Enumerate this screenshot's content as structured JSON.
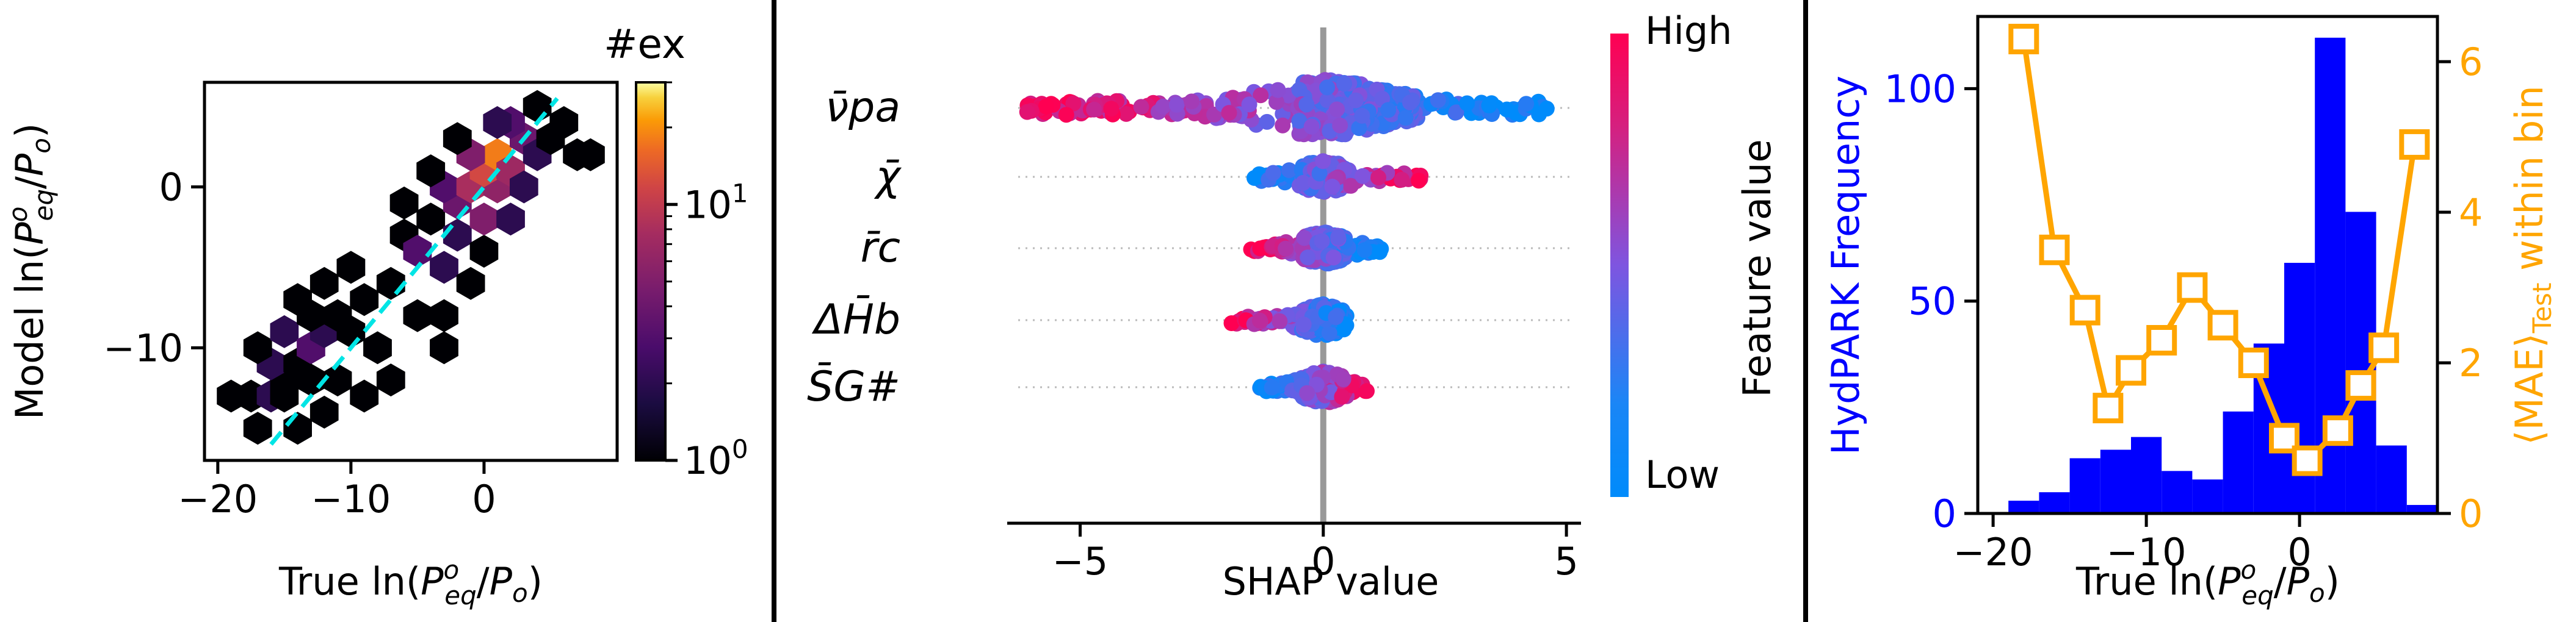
{
  "panels": [
    {
      "id": "hexbin",
      "chart_data": {
        "type": "heatmap",
        "subtype": "hexbin",
        "xlabel": "True ln(P°eq/Po)",
        "ylabel": "Model ln(P°eq/Po)",
        "xticks": [
          -20,
          -10,
          0
        ],
        "yticks": [
          0,
          -10
        ],
        "xlim": [
          -21,
          10
        ],
        "ylim": [
          -17,
          6.5
        ],
        "colorbar": {
          "label": "#ex",
          "scale": "log",
          "ticks": [
            "10^0",
            "10^1"
          ],
          "range": [
            1,
            30
          ],
          "colormap": "inferno"
        },
        "cells": [
          {
            "x": -19,
            "y": -13,
            "count": 1
          },
          {
            "x": -17.5,
            "y": -13,
            "count": 1
          },
          {
            "x": -16,
            "y": -13,
            "count": 2
          },
          {
            "x": -15,
            "y": -12,
            "count": 1
          },
          {
            "x": -16,
            "y": -11,
            "count": 2
          },
          {
            "x": -14,
            "y": -11,
            "count": 1
          },
          {
            "x": -17,
            "y": -10,
            "count": 1
          },
          {
            "x": -15,
            "y": -9,
            "count": 2
          },
          {
            "x": -13,
            "y": -10,
            "count": 3
          },
          {
            "x": -12,
            "y": -9,
            "count": 2
          },
          {
            "x": -13,
            "y": -8,
            "count": 1
          },
          {
            "x": -11,
            "y": -8,
            "count": 1
          },
          {
            "x": -10,
            "y": -9,
            "count": 1
          },
          {
            "x": -14,
            "y": -7,
            "count": 1
          },
          {
            "x": -12,
            "y": -6,
            "count": 1
          },
          {
            "x": -9,
            "y": -7,
            "count": 1
          },
          {
            "x": -7,
            "y": -6,
            "count": 1
          },
          {
            "x": -10,
            "y": -5,
            "count": 1
          },
          {
            "x": -15,
            "y": -13,
            "count": 1
          },
          {
            "x": -13,
            "y": -12,
            "count": 1
          },
          {
            "x": -11,
            "y": -12,
            "count": 1
          },
          {
            "x": -9,
            "y": -13,
            "count": 1
          },
          {
            "x": -12,
            "y": -14,
            "count": 1
          },
          {
            "x": -17,
            "y": -15,
            "count": 1
          },
          {
            "x": -14,
            "y": -15,
            "count": 1
          },
          {
            "x": -7,
            "y": -12,
            "count": 1
          },
          {
            "x": -5,
            "y": -8,
            "count": 1
          },
          {
            "x": -3,
            "y": -8,
            "count": 1
          },
          {
            "x": -6,
            "y": -3,
            "count": 1
          },
          {
            "x": -4,
            "y": -2,
            "count": 1
          },
          {
            "x": -5,
            "y": -4,
            "count": 3
          },
          {
            "x": -3,
            "y": -5,
            "count": 2
          },
          {
            "x": -2,
            "y": -3,
            "count": 2
          },
          {
            "x": -1,
            "y": -6,
            "count": 1
          },
          {
            "x": 0,
            "y": -4,
            "count": 1
          },
          {
            "x": -2,
            "y": -1,
            "count": 4
          },
          {
            "x": -3,
            "y": 0,
            "count": 3
          },
          {
            "x": -1,
            "y": 0,
            "count": 8
          },
          {
            "x": 1,
            "y": 0,
            "count": 6
          },
          {
            "x": 0,
            "y": -2,
            "count": 5
          },
          {
            "x": 2,
            "y": -2,
            "count": 2
          },
          {
            "x": 0,
            "y": 1,
            "count": 12
          },
          {
            "x": 1,
            "y": 2,
            "count": 18
          },
          {
            "x": 2,
            "y": 1,
            "count": 7
          },
          {
            "x": -1,
            "y": 2,
            "count": 5
          },
          {
            "x": 3,
            "y": 3,
            "count": 4
          },
          {
            "x": 2,
            "y": 4,
            "count": 3
          },
          {
            "x": 4,
            "y": 2,
            "count": 2
          },
          {
            "x": 1,
            "y": 4,
            "count": 2
          },
          {
            "x": 3,
            "y": 0,
            "count": 2
          },
          {
            "x": 5,
            "y": 3,
            "count": 1
          },
          {
            "x": 4,
            "y": 5,
            "count": 1
          },
          {
            "x": 6,
            "y": 4,
            "count": 1
          },
          {
            "x": 7,
            "y": 2,
            "count": 1
          },
          {
            "x": 8,
            "y": 2,
            "count": 1
          },
          {
            "x": -4,
            "y": 1,
            "count": 1
          },
          {
            "x": -6,
            "y": -1,
            "count": 1
          },
          {
            "x": -2,
            "y": 3,
            "count": 1
          },
          {
            "x": -3,
            "y": -10,
            "count": 1
          },
          {
            "x": -8,
            "y": -10,
            "count": 1
          }
        ],
        "series": [
          {
            "type": "line",
            "style": "dashed",
            "color": "#00e5e5",
            "x": [
              -16,
              5.5
            ],
            "y": [
              -16,
              5.5
            ]
          }
        ]
      }
    },
    {
      "id": "shap",
      "chart_data": {
        "type": "scatter",
        "subtype": "beeswarm",
        "xlabel": "SHAP value",
        "xticks": [
          -5,
          0,
          5
        ],
        "xlim": [
          -6.5,
          5.3
        ],
        "features": [
          "ν̄pa",
          "χ̄",
          "r̄c",
          "ΔH̄b",
          "S̄G#"
        ],
        "colorbar": {
          "label": "Feature value",
          "high": "High",
          "low": "Low",
          "high_color": "#ff0052",
          "low_color": "#008bfb"
        },
        "distributions": [
          {
            "feature": "ν̄pa",
            "min": -6.1,
            "max": 4.6,
            "low_side": "positive",
            "spread": 0.9
          },
          {
            "feature": "χ̄",
            "min": -1.5,
            "max": 2.1,
            "low_side": "negative",
            "spread": 0.55
          },
          {
            "feature": "r̄c",
            "min": -1.6,
            "max": 1.2,
            "low_side": "positive",
            "spread": 0.5
          },
          {
            "feature": "ΔH̄b",
            "min": -1.9,
            "max": 0.5,
            "low_side": "positive",
            "spread": 0.45
          },
          {
            "feature": "S̄G#",
            "min": -1.3,
            "max": 1.0,
            "low_side": "negative",
            "spread": 0.45
          }
        ]
      }
    },
    {
      "id": "histogram",
      "chart_data": {
        "type": "bar",
        "subtype": "histogram_with_line",
        "xlabel": "True ln(P°eq/Po)",
        "ylabel_left": "HydPARK Frequency",
        "ylabel_right": "⟨MAE⟩Test within bin",
        "xticks": [
          -20,
          -10,
          0
        ],
        "yticks_left": [
          0,
          50,
          100
        ],
        "yticks_right": [
          0,
          2,
          4,
          6
        ],
        "xlim": [
          -21,
          9
        ],
        "ylim_left": [
          0,
          117
        ],
        "ylim_right": [
          0,
          6.6
        ],
        "bin_edges": [
          -19,
          -17,
          -15,
          -13,
          -11,
          -9,
          -7,
          -5,
          -3,
          -1,
          1,
          3,
          5,
          7,
          9
        ],
        "frequency": [
          3,
          5,
          13,
          15,
          18,
          10,
          8,
          24,
          40,
          59,
          112,
          71,
          16,
          2
        ],
        "frequency_color": "#0000ff",
        "mae_color": "#ffa500",
        "mae": {
          "x": [
            -18,
            -16,
            -14,
            -12.5,
            -11,
            -9,
            -7,
            -5,
            -3,
            -1,
            0.5,
            2.5,
            4,
            5.5,
            7.5
          ],
          "y": [
            6.3,
            3.5,
            2.7,
            1.4,
            1.9,
            2.3,
            3.0,
            2.5,
            2.0,
            1.0,
            0.7,
            1.1,
            1.7,
            2.2,
            4.9
          ]
        }
      }
    }
  ]
}
